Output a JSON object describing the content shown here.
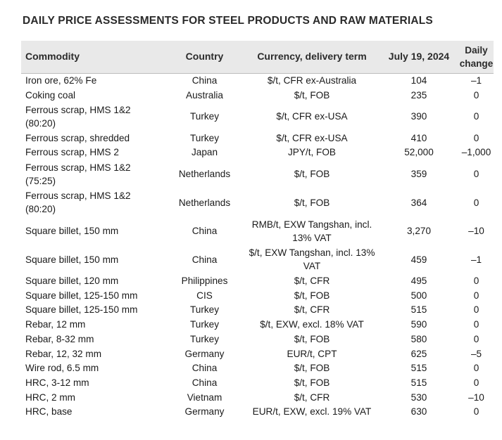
{
  "title": "DAILY PRICE ASSESSMENTS FOR STEEL PRODUCTS AND RAW MATERIALS",
  "table": {
    "headers": {
      "commodity": "Commodity",
      "country": "Country",
      "currency": "Currency, delivery term",
      "date": "July 19, 2024",
      "change": "Daily change"
    },
    "rows": [
      {
        "commodity": "Iron ore, 62% Fe",
        "country": "China",
        "currency": "$/t, CFR ex-Australia",
        "price": "104",
        "change": "–1"
      },
      {
        "commodity": "Coking coal",
        "country": "Australia",
        "currency": "$/t, FOB",
        "price": "235",
        "change": "0"
      },
      {
        "commodity": "Ferrous scrap, HMS 1&2 (80:20)",
        "country": "Turkey",
        "currency": "$/t, CFR ex-USA",
        "price": "390",
        "change": "0"
      },
      {
        "commodity": "Ferrous scrap, shredded",
        "country": "Turkey",
        "currency": "$/t, CFR ex-USA",
        "price": "410",
        "change": "0"
      },
      {
        "commodity": "Ferrous scrap, HMS 2",
        "country": "Japan",
        "currency": "JPY/t, FOB",
        "price": "52,000",
        "change": "–1,000"
      },
      {
        "commodity": "Ferrous scrap, HMS 1&2 (75:25)",
        "country": "Netherlands",
        "currency": "$/t, FOB",
        "price": "359",
        "change": "0"
      },
      {
        "commodity": "Ferrous scrap, HMS 1&2 (80:20)",
        "country": "Netherlands",
        "currency": "$/t, FOB",
        "price": "364",
        "change": "0"
      },
      {
        "commodity": "Square billet, 150 mm",
        "country": "China",
        "currency": "RMB/t, EXW Tangshan, incl. 13% VAT",
        "price": "3,270",
        "change": "–10"
      },
      {
        "commodity": "Square billet, 150 mm",
        "country": "China",
        "currency": "$/t, EXW Tangshan, incl. 13% VAT",
        "price": "459",
        "change": "–1"
      },
      {
        "commodity": "Square billet, 120 mm",
        "country": "Philippines",
        "currency": "$/t, CFR",
        "price": "495",
        "change": "0"
      },
      {
        "commodity": "Square billet, 125-150 mm",
        "country": "CIS",
        "currency": "$/t, FOB",
        "price": "500",
        "change": "0"
      },
      {
        "commodity": "Square billet, 125-150 mm",
        "country": "Turkey",
        "currency": "$/t, CFR",
        "price": "515",
        "change": "0"
      },
      {
        "commodity": "Rebar, 12 mm",
        "country": "Turkey",
        "currency": "$/t, EXW, excl. 18% VAT",
        "price": "590",
        "change": "0"
      },
      {
        "commodity": "Rebar, 8-32 mm",
        "country": "Turkey",
        "currency": "$/t, FOB",
        "price": "580",
        "change": "0"
      },
      {
        "commodity": "Rebar, 12, 32 mm",
        "country": "Germany",
        "currency": "EUR/t, CPT",
        "price": "625",
        "change": "–5"
      },
      {
        "commodity": "Wire rod, 6.5 mm",
        "country": "China",
        "currency": "$/t, FOB",
        "price": "515",
        "change": "0"
      },
      {
        "commodity": "HRC, 3-12 mm",
        "country": "China",
        "currency": "$/t, FOB",
        "price": "515",
        "change": "0"
      },
      {
        "commodity": "HRC, 2 mm",
        "country": "Vietnam",
        "currency": "$/t, CFR",
        "price": "530",
        "change": "–10"
      },
      {
        "commodity": "HRC, base",
        "country": "Germany",
        "currency": "EUR/t, EXW, excl. 19% VAT",
        "price": "630",
        "change": "0"
      }
    ]
  }
}
